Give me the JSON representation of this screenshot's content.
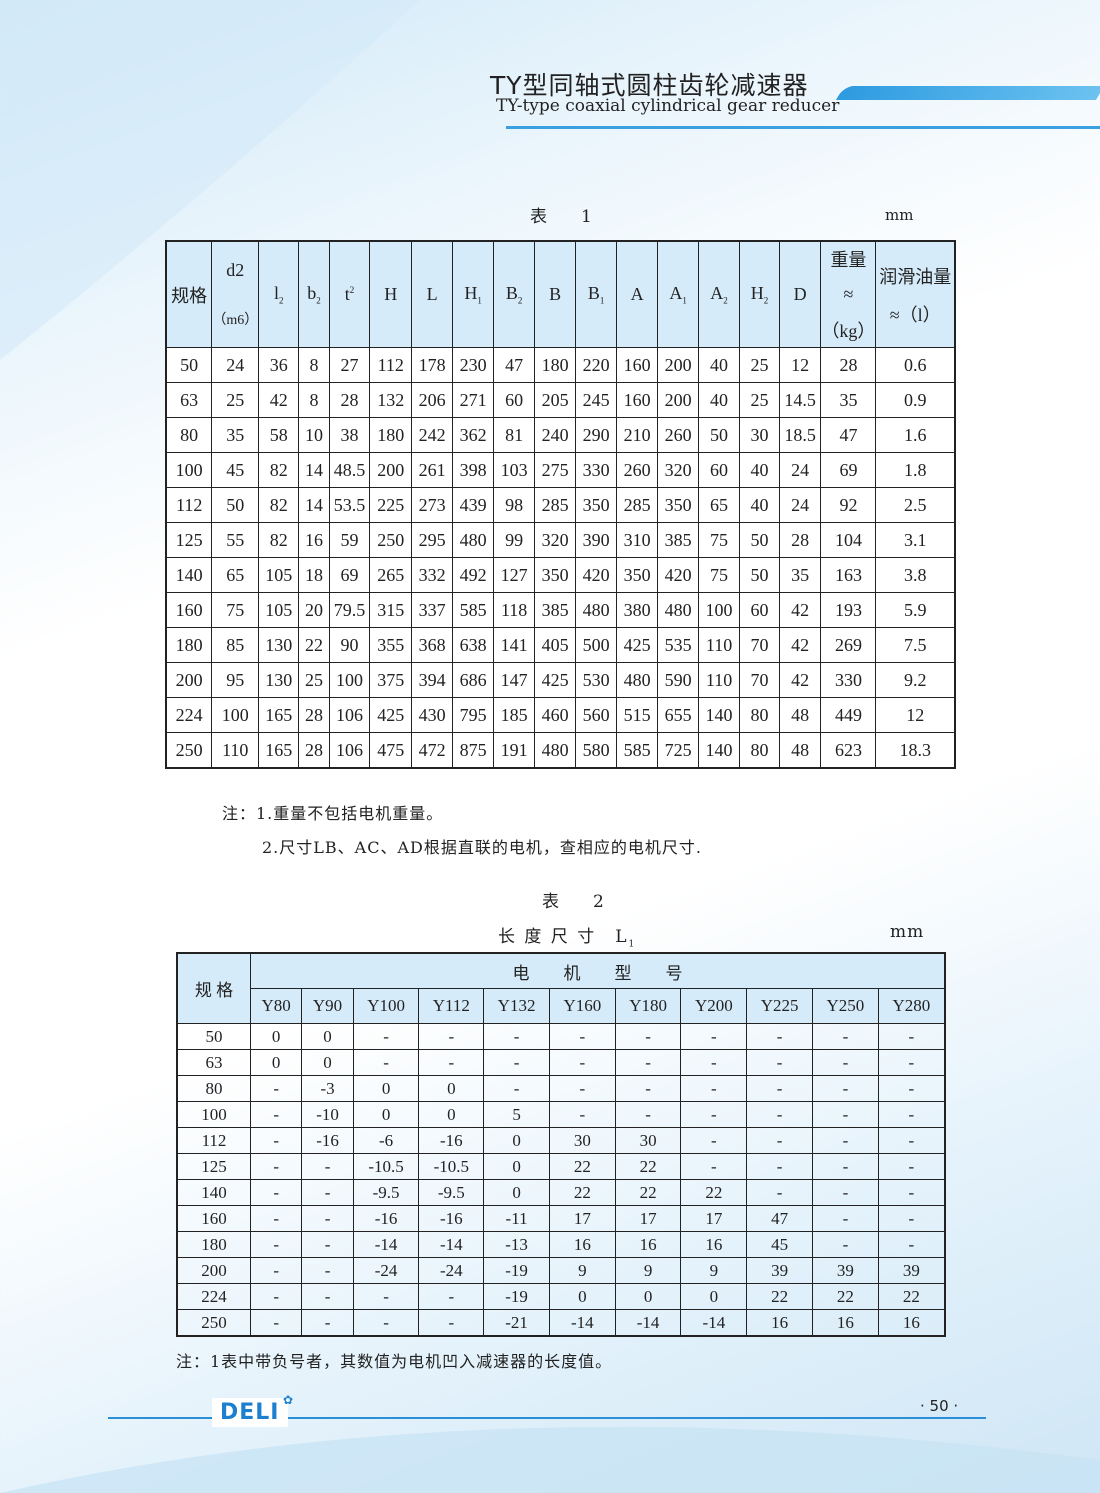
{
  "header": {
    "title_cn": "TY型同轴式圆柱齿轮减速器",
    "title_en": "TY-type coaxial cylindrical gear reducer"
  },
  "table1": {
    "caption": "表　　1",
    "unit": "mm",
    "headers": [
      "规格",
      "d2|（m6）",
      "l2",
      "b2",
      "t2",
      "H",
      "L",
      "H1",
      "B2",
      "B",
      "B1",
      "A",
      "A1",
      "A2",
      "H2",
      "D",
      "重量|≈|（kg）",
      "润滑油量|≈（l）"
    ],
    "rows": [
      [
        "50",
        "24",
        "36",
        "8",
        "27",
        "112",
        "178",
        "230",
        "47",
        "180",
        "220",
        "160",
        "200",
        "40",
        "25",
        "12",
        "28",
        "0.6"
      ],
      [
        "63",
        "25",
        "42",
        "8",
        "28",
        "132",
        "206",
        "271",
        "60",
        "205",
        "245",
        "160",
        "200",
        "40",
        "25",
        "14.5",
        "35",
        "0.9"
      ],
      [
        "80",
        "35",
        "58",
        "10",
        "38",
        "180",
        "242",
        "362",
        "81",
        "240",
        "290",
        "210",
        "260",
        "50",
        "30",
        "18.5",
        "47",
        "1.6"
      ],
      [
        "100",
        "45",
        "82",
        "14",
        "48.5",
        "200",
        "261",
        "398",
        "103",
        "275",
        "330",
        "260",
        "320",
        "60",
        "40",
        "24",
        "69",
        "1.8"
      ],
      [
        "112",
        "50",
        "82",
        "14",
        "53.5",
        "225",
        "273",
        "439",
        "98",
        "285",
        "350",
        "285",
        "350",
        "65",
        "40",
        "24",
        "92",
        "2.5"
      ],
      [
        "125",
        "55",
        "82",
        "16",
        "59",
        "250",
        "295",
        "480",
        "99",
        "320",
        "390",
        "310",
        "385",
        "75",
        "50",
        "28",
        "104",
        "3.1"
      ],
      [
        "140",
        "65",
        "105",
        "18",
        "69",
        "265",
        "332",
        "492",
        "127",
        "350",
        "420",
        "350",
        "420",
        "75",
        "50",
        "35",
        "163",
        "3.8"
      ],
      [
        "160",
        "75",
        "105",
        "20",
        "79.5",
        "315",
        "337",
        "585",
        "118",
        "385",
        "480",
        "380",
        "480",
        "100",
        "60",
        "42",
        "193",
        "5.9"
      ],
      [
        "180",
        "85",
        "130",
        "22",
        "90",
        "355",
        "368",
        "638",
        "141",
        "405",
        "500",
        "425",
        "535",
        "110",
        "70",
        "42",
        "269",
        "7.5"
      ],
      [
        "200",
        "95",
        "130",
        "25",
        "100",
        "375",
        "394",
        "686",
        "147",
        "425",
        "530",
        "480",
        "590",
        "110",
        "70",
        "42",
        "330",
        "9.2"
      ],
      [
        "224",
        "100",
        "165",
        "28",
        "106",
        "425",
        "430",
        "795",
        "185",
        "460",
        "560",
        "515",
        "655",
        "140",
        "80",
        "48",
        "449",
        "12"
      ],
      [
        "250",
        "110",
        "165",
        "28",
        "106",
        "475",
        "472",
        "875",
        "191",
        "480",
        "580",
        "585",
        "725",
        "140",
        "80",
        "48",
        "623",
        "18.3"
      ]
    ],
    "notes": [
      "注：1.重量不包括电机重量。",
      "2.尺寸LB、AC、AD根据直联的电机，查相应的电机尺寸."
    ]
  },
  "table2": {
    "caption": "表　　2",
    "subtitle": "长 度 尺 寸　L",
    "subtitle_sub": "1",
    "unit": "mm",
    "row_header": "规 格",
    "group_header": "电　　机　　型　　号",
    "columns": [
      "Y80",
      "Y90",
      "Y100",
      "Y112",
      "Y132",
      "Y160",
      "Y180",
      "Y200",
      "Y225",
      "Y250",
      "Y280"
    ],
    "rows": [
      [
        "50",
        "0",
        "0",
        "-",
        "-",
        "-",
        "-",
        "-",
        "-",
        "-",
        "-",
        "-"
      ],
      [
        "63",
        "0",
        "0",
        "-",
        "-",
        "-",
        "-",
        "-",
        "-",
        "-",
        "-",
        "-"
      ],
      [
        "80",
        "-",
        "-3",
        "0",
        "0",
        "-",
        "-",
        "-",
        "-",
        "-",
        "-",
        "-"
      ],
      [
        "100",
        "-",
        "-10",
        "0",
        "0",
        "5",
        "-",
        "-",
        "-",
        "-",
        "-",
        "-"
      ],
      [
        "112",
        "-",
        "-16",
        "-6",
        "-16",
        "0",
        "30",
        "30",
        "-",
        "-",
        "-",
        "-"
      ],
      [
        "125",
        "-",
        "-",
        "-10.5",
        "-10.5",
        "0",
        "22",
        "22",
        "-",
        "-",
        "-",
        "-"
      ],
      [
        "140",
        "-",
        "-",
        "-9.5",
        "-9.5",
        "0",
        "22",
        "22",
        "22",
        "-",
        "-",
        "-"
      ],
      [
        "160",
        "-",
        "-",
        "-16",
        "-16",
        "-11",
        "17",
        "17",
        "17",
        "47",
        "-",
        "-"
      ],
      [
        "180",
        "-",
        "-",
        "-14",
        "-14",
        "-13",
        "16",
        "16",
        "16",
        "45",
        "-",
        "-"
      ],
      [
        "200",
        "-",
        "-",
        "-24",
        "-24",
        "-19",
        "9",
        "9",
        "9",
        "39",
        "39",
        "39"
      ],
      [
        "224",
        "-",
        "-",
        "-",
        "-",
        "-19",
        "0",
        "0",
        "0",
        "22",
        "22",
        "22"
      ],
      [
        "250",
        "-",
        "-",
        "-",
        "-",
        "-21",
        "-14",
        "-14",
        "-14",
        "16",
        "16",
        "16"
      ]
    ],
    "note": "注：1表中带负号者，其数值为电机凹入减速器的长度值。"
  },
  "footer": {
    "logo": "DELI",
    "page_number": "· 50 ·"
  },
  "colors": {
    "accent": "#2a8fd6",
    "header_fill": "#d6ebfa"
  }
}
